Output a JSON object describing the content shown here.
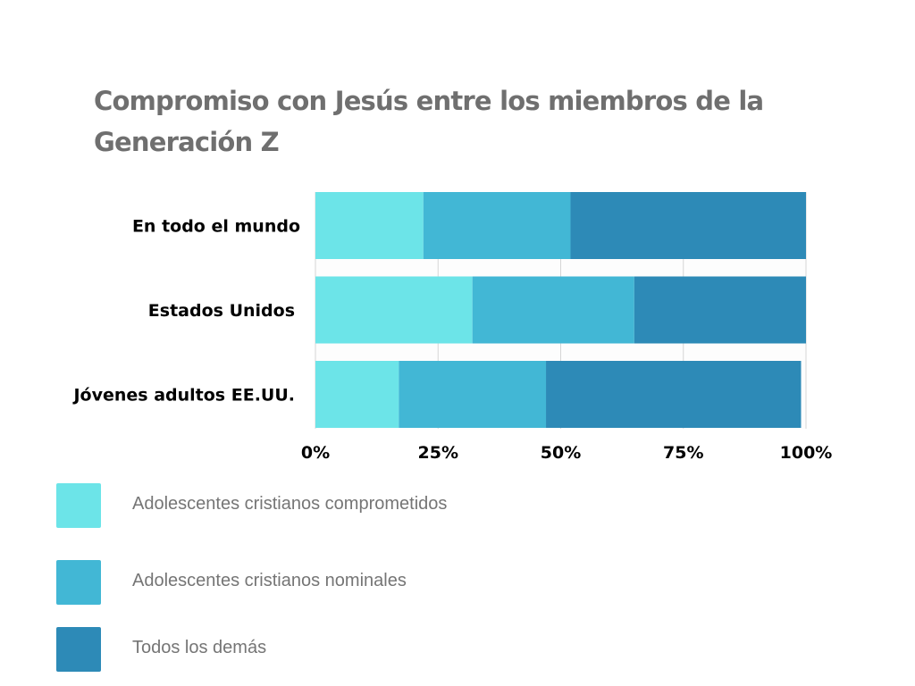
{
  "title": "Compromiso con Jesús entre los miembros de la Generación Z",
  "chart_data": {
    "type": "bar",
    "orientation": "horizontal",
    "stacked": true,
    "title": "Compromiso con Jesús entre los miembros de la Generación Z",
    "xlabel": "",
    "ylabel": "",
    "categories": [
      "En todo el mundo",
      "Estados Unidos",
      "Jóvenes adultos EE.UU."
    ],
    "series": [
      {
        "name": "Adolescentes cristianos comprometidos",
        "color": "#6ce4e8",
        "values": [
          22,
          32,
          17
        ]
      },
      {
        "name": "Adolescentes cristianos nominales",
        "color": "#42b7d5",
        "values": [
          30,
          33,
          30
        ]
      },
      {
        "name": "Todos los demás",
        "color": "#2d8ab7",
        "values": [
          48,
          35,
          52
        ]
      }
    ],
    "xlim": [
      0,
      100
    ],
    "xticks": [
      "0%",
      "25%",
      "50%",
      "75%",
      "100%"
    ],
    "grid": true,
    "legend_position": "bottom-left"
  }
}
